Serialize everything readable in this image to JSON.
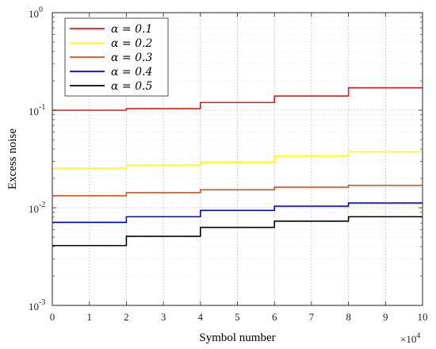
{
  "chart_data": {
    "type": "line",
    "step": true,
    "xlabel": "Symbol number",
    "ylabel": "Excess noise",
    "x_multiplier": "×10",
    "x_multiplier_exp": "4",
    "xlim": [
      0,
      100000
    ],
    "ylim": [
      0.001,
      1
    ],
    "yscale": "log",
    "grid": true,
    "legend_position": "top-left",
    "x_ticks": [
      0,
      10000,
      20000,
      30000,
      40000,
      50000,
      60000,
      70000,
      80000,
      90000,
      100000
    ],
    "x_tick_labels": [
      "0",
      "1",
      "2",
      "3",
      "4",
      "5",
      "6",
      "7",
      "8",
      "9",
      "10"
    ],
    "y_ticks": [
      {
        "value": 0.001,
        "base": "10",
        "exp": "-3"
      },
      {
        "value": 0.01,
        "base": "10",
        "exp": "-2"
      },
      {
        "value": 0.1,
        "base": "10",
        "exp": "-1"
      },
      {
        "value": 1,
        "base": "10",
        "exp": "0"
      }
    ],
    "x": [
      0,
      20000,
      40000,
      60000,
      80000,
      100000
    ],
    "series": [
      {
        "name": "α = 0.1",
        "color": "#e41a1c",
        "values": [
          0.1,
          0.104,
          0.12,
          0.14,
          0.17,
          0.17
        ]
      },
      {
        "name": "α = 0.2",
        "color": "#ffff00",
        "values": [
          0.0255,
          0.0275,
          0.0295,
          0.034,
          0.0375,
          0.0375
        ]
      },
      {
        "name": "α = 0.3",
        "color": "#d95319",
        "values": [
          0.0133,
          0.0143,
          0.0153,
          0.0163,
          0.017,
          0.017
        ]
      },
      {
        "name": "α = 0.4",
        "color": "#0000ff",
        "values": [
          0.0071,
          0.0081,
          0.0094,
          0.0104,
          0.0112,
          0.0112
        ]
      },
      {
        "name": "α = 0.5",
        "color": "#000000",
        "values": [
          0.0041,
          0.0051,
          0.0063,
          0.0073,
          0.0081,
          0.0081
        ]
      }
    ]
  }
}
